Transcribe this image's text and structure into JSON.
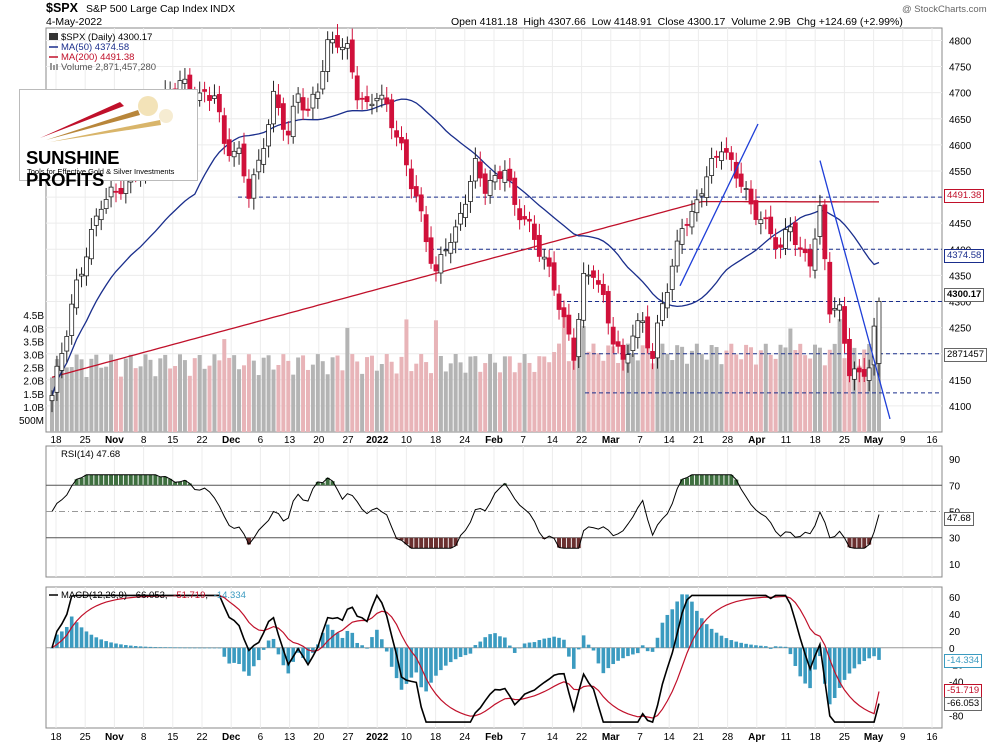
{
  "header": {
    "symbol": "$SPX",
    "name": "S&P 500 Large Cap Index",
    "exchange": "INDX",
    "date": "4-May-2022",
    "credit": "@ StockCharts.com",
    "ohlc_text": "Open 4181.18  High 4307.66  Low 4148.91  Close 4300.17  Volume 2.9B  Chg +124.69 (+2.99%)"
  },
  "legend": {
    "price": "$SPX (Daily) 4300.17",
    "ma50": "MA(50) 4374.58",
    "ma200": "MA(200) 4491.38",
    "volume": "Volume 2,871,457,280"
  },
  "logo": {
    "name": "SUNSHINE PROFITS",
    "tagline": "Tools for Effective Gold & Silver Investments"
  },
  "colors": {
    "up": "#222222",
    "down": "#d0103a",
    "ma50": "#1a2e8c",
    "ma200": "#c0102a",
    "trend": "#1f3fd8",
    "vol_up": "#b4b4b4",
    "vol_down": "#e8b4b8",
    "macd_hist": "#3b9bc0",
    "rsi_top": "#3f7040",
    "rsi_bot": "#6b3030"
  },
  "badges": {
    "ma200": "4491.38",
    "ma50": "4374.58",
    "close": "4300.17",
    "volume": "2871457",
    "rsi": "47.68",
    "macd_hist": "-14.334",
    "macd_signal": "-51.719",
    "macd": "-66.053"
  },
  "chart_data": {
    "type": "candlestick",
    "price_axis": {
      "min": 4050,
      "max": 4820,
      "ticks": [
        4100,
        4150,
        4200,
        4250,
        4300,
        4350,
        4400,
        4450,
        4500,
        4550,
        4600,
        4650,
        4700,
        4750,
        4800
      ]
    },
    "volume_axis": {
      "labels": [
        "500M",
        "1.0B",
        "1.5B",
        "2.0B",
        "2.5B",
        "3.0B",
        "3.5B",
        "4.0B",
        "4.5B"
      ]
    },
    "x_labels": [
      "18",
      "25",
      "Nov",
      "8",
      "15",
      "22",
      "Dec",
      "6",
      "13",
      "20",
      "27",
      "2022",
      "10",
      "18",
      "24",
      "Feb",
      "7",
      "14",
      "22",
      "Mar",
      "7",
      "14",
      "21",
      "28",
      "Apr",
      "11",
      "18",
      "25",
      "May",
      "9",
      "16"
    ],
    "horizontal_levels": [
      4500,
      4400,
      4300,
      4200,
      4125
    ],
    "last_candle": {
      "open": 4181.18,
      "high": 4307.66,
      "low": 4148.91,
      "close": 4300.17,
      "volume": 2871457280
    },
    "ma50_last": 4374.58,
    "ma200_last": 4491.38,
    "rsi": {
      "label": "RSI(14) 47.68",
      "value": 47.68,
      "levels": [
        70,
        30
      ],
      "ticks": [
        90,
        70,
        50,
        30,
        10
      ]
    },
    "macd": {
      "label_prefix": "MACD(12,26,9)",
      "macd": "-66.053",
      "signal": "-51.719",
      "hist": "-14.334",
      "ticks": [
        60,
        40,
        20,
        0,
        -20,
        -40,
        -60,
        -80
      ]
    },
    "x_labels_bottom": [
      "18",
      "25",
      "Nov",
      "8",
      "15",
      "22",
      "Dec",
      "6",
      "13",
      "20",
      "27",
      "2022",
      "10",
      "18",
      "24",
      "Feb",
      "7",
      "14",
      "22",
      "Mar",
      "7",
      "14",
      "21",
      "28",
      "Apr",
      "11",
      "18",
      "25",
      "May",
      "9",
      "16"
    ]
  }
}
